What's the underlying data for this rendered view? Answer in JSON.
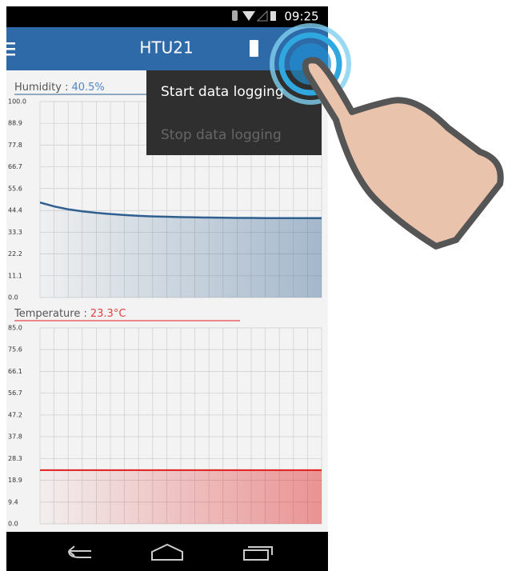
{
  "status_bar": {
    "time": "09:25"
  },
  "app_bar": {
    "title": "HTU21"
  },
  "menu": {
    "items": [
      "Start data logging",
      "Stop data logging"
    ]
  },
  "chart_data": [
    {
      "type": "line",
      "title": "Humidity :",
      "reading": "40.5%",
      "color": "#2e5f8f",
      "reading_color": "#4f86c6",
      "values": [
        48.5,
        46.5,
        45.0,
        44.0,
        43.2,
        42.6,
        42.1,
        41.7,
        41.4,
        41.2,
        41.0,
        40.9,
        40.8,
        40.7,
        40.6,
        40.6,
        40.5,
        40.5,
        40.5,
        40.5,
        40.5
      ],
      "ylim": [
        0,
        100
      ],
      "yticks": [
        {
          "value": 0,
          "label": "0.0"
        },
        11.1,
        22.2,
        33.3,
        44.4,
        55.6,
        66.7,
        77.8,
        88.9,
        {
          "value": 100,
          "label": "100.0"
        }
      ],
      "grid": true
    },
    {
      "type": "line",
      "title": "Temperature :",
      "reading": "23.3°C",
      "color": "#e01e1e",
      "reading_color": "#e04040",
      "values": [
        23.3,
        23.3,
        23.3,
        23.3,
        23.3,
        23.3,
        23.3,
        23.3,
        23.3,
        23.3,
        23.3
      ],
      "ylim": [
        0,
        85
      ],
      "yticks": [
        {
          "value": 0,
          "label": "0.0"
        },
        9.4,
        18.9,
        28.3,
        37.8,
        47.2,
        56.7,
        66.1,
        75.6,
        {
          "value": 85,
          "label": "85.0"
        }
      ],
      "grid": true
    }
  ]
}
